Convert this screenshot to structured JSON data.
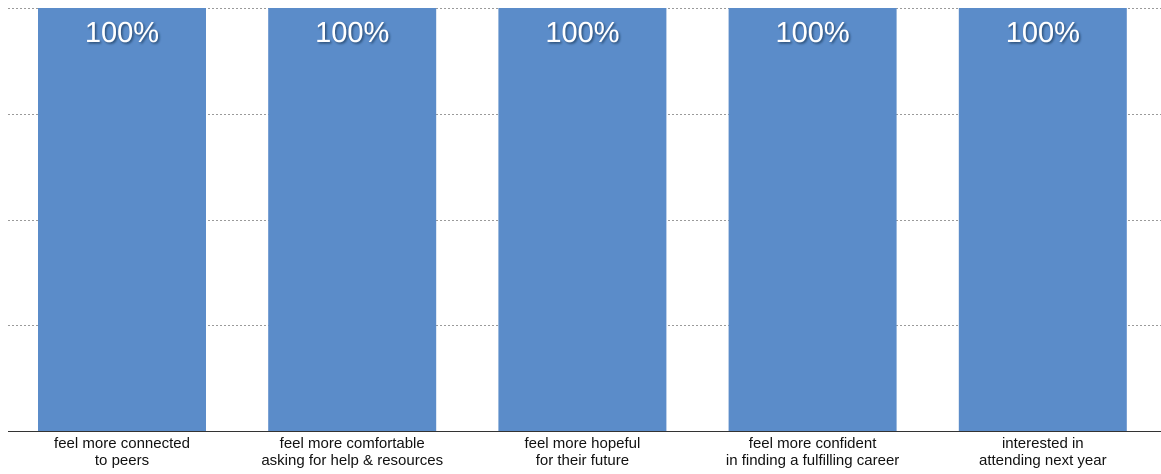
{
  "chart_data": {
    "type": "bar",
    "categories": [
      [
        "feel more connected",
        "to peers"
      ],
      [
        "feel more comfortable",
        "asking for help & resources"
      ],
      [
        "feel more hopeful",
        "for their future"
      ],
      [
        "feel more confident",
        "in finding a fulfilling career"
      ],
      [
        "interested in",
        "attending next year"
      ]
    ],
    "values": [
      100,
      100,
      100,
      100,
      100
    ],
    "data_labels": [
      "100%",
      "100%",
      "100%",
      "100%",
      "100%"
    ],
    "title": "",
    "xlabel": "",
    "ylabel": "",
    "ylim": [
      0,
      100
    ],
    "grid": true,
    "bar_color": "#5b8cc9",
    "data_label_color": "#ffffff"
  }
}
